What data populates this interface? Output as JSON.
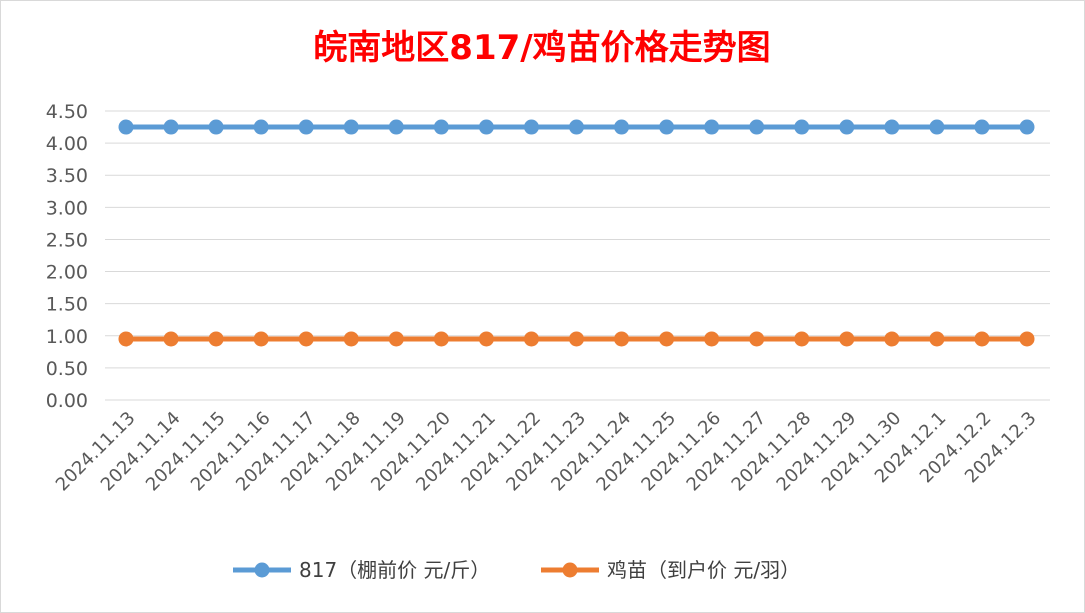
{
  "chart_data": {
    "type": "line",
    "title": "皖南地区817/鸡苗价格走势图",
    "xlabel": "",
    "ylabel": "",
    "ylim": [
      0,
      4.5
    ],
    "y_ticks": [
      "0.00",
      "0.50",
      "1.00",
      "1.50",
      "2.00",
      "2.50",
      "3.00",
      "3.50",
      "4.00",
      "4.50"
    ],
    "grid": true,
    "legend_position": "bottom",
    "categories": [
      "2024.11.13",
      "2024.11.14",
      "2024.11.15",
      "2024.11.16",
      "2024.11.17",
      "2024.11.18",
      "2024.11.19",
      "2024.11.20",
      "2024.11.21",
      "2024.11.22",
      "2024.11.23",
      "2024.11.24",
      "2024.11.25",
      "2024.11.26",
      "2024.11.27",
      "2024.11.28",
      "2024.11.29",
      "2024.11.30",
      "2024.12.1",
      "2024.12.2",
      "2024.12.3"
    ],
    "series": [
      {
        "name": "817（棚前价 元/斤）",
        "color": "#5b9bd5",
        "values": [
          4.25,
          4.25,
          4.25,
          4.25,
          4.25,
          4.25,
          4.25,
          4.25,
          4.25,
          4.25,
          4.25,
          4.25,
          4.25,
          4.25,
          4.25,
          4.25,
          4.25,
          4.25,
          4.25,
          4.25,
          4.25
        ]
      },
      {
        "name": "鸡苗（到户价 元/羽）",
        "color": "#ed7d31",
        "values": [
          0.95,
          0.95,
          0.95,
          0.95,
          0.95,
          0.95,
          0.95,
          0.95,
          0.95,
          0.95,
          0.95,
          0.95,
          0.95,
          0.95,
          0.95,
          0.95,
          0.95,
          0.95,
          0.95,
          0.95,
          0.95
        ]
      }
    ]
  }
}
